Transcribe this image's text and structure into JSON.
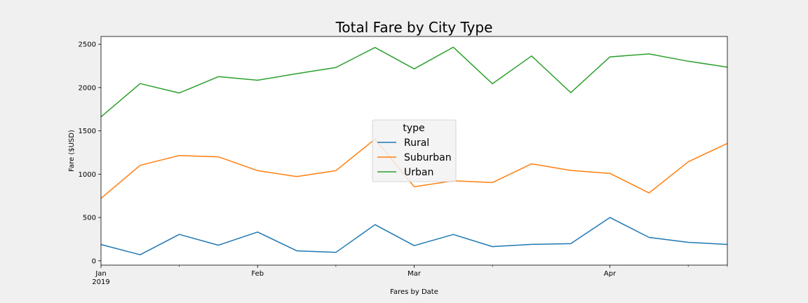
{
  "chart_data": {
    "type": "line",
    "title": "Total Fare by City Type",
    "xlabel": "Fares by Date",
    "ylabel": "Fare ($USD)",
    "x": [
      "2019-01-06",
      "2019-01-13",
      "2019-01-20",
      "2019-01-27",
      "2019-02-03",
      "2019-02-10",
      "2019-02-17",
      "2019-02-24",
      "2019-03-03",
      "2019-03-10",
      "2019-03-17",
      "2019-03-24",
      "2019-03-31",
      "2019-04-07",
      "2019-04-14",
      "2019-04-21",
      "2019-04-28"
    ],
    "x_tick_labels": [
      {
        "date": "2019-01-06",
        "label": "Jan",
        "sublabel": "2019"
      },
      {
        "date": "2019-02-03",
        "label": "Feb",
        "sublabel": ""
      },
      {
        "date": "2019-03-03",
        "label": "Mar",
        "sublabel": ""
      },
      {
        "date": "2019-04-07",
        "label": "Apr",
        "sublabel": ""
      }
    ],
    "x_minor_ticks": [
      "2019-01-20",
      "2019-02-17",
      "2019-03-17",
      "2019-04-21",
      "2019-04-28"
    ],
    "y_ticks": [
      0,
      500,
      1000,
      1500,
      2000,
      2500
    ],
    "ylim": [
      -50,
      2590
    ],
    "legend": {
      "title": "type",
      "placement": "center"
    },
    "series": [
      {
        "name": "Rural",
        "color": "#1f77b4",
        "values": [
          188,
          70,
          305,
          180,
          332,
          115,
          97,
          417,
          175,
          304,
          164,
          190,
          198,
          500,
          270,
          213,
          189
        ]
      },
      {
        "name": "Suburban",
        "color": "#ff7f0e",
        "values": [
          721,
          1102,
          1216,
          1200,
          1041,
          972,
          1041,
          1405,
          855,
          923,
          903,
          1119,
          1043,
          1009,
          783,
          1143,
          1355
        ]
      },
      {
        "name": "Urban",
        "color": "#2ca02c",
        "values": [
          1662,
          2046,
          1937,
          2126,
          2085,
          2161,
          2232,
          2463,
          2216,
          2466,
          2044,
          2365,
          1941,
          2354,
          2388,
          2304,
          2236
        ]
      }
    ]
  }
}
